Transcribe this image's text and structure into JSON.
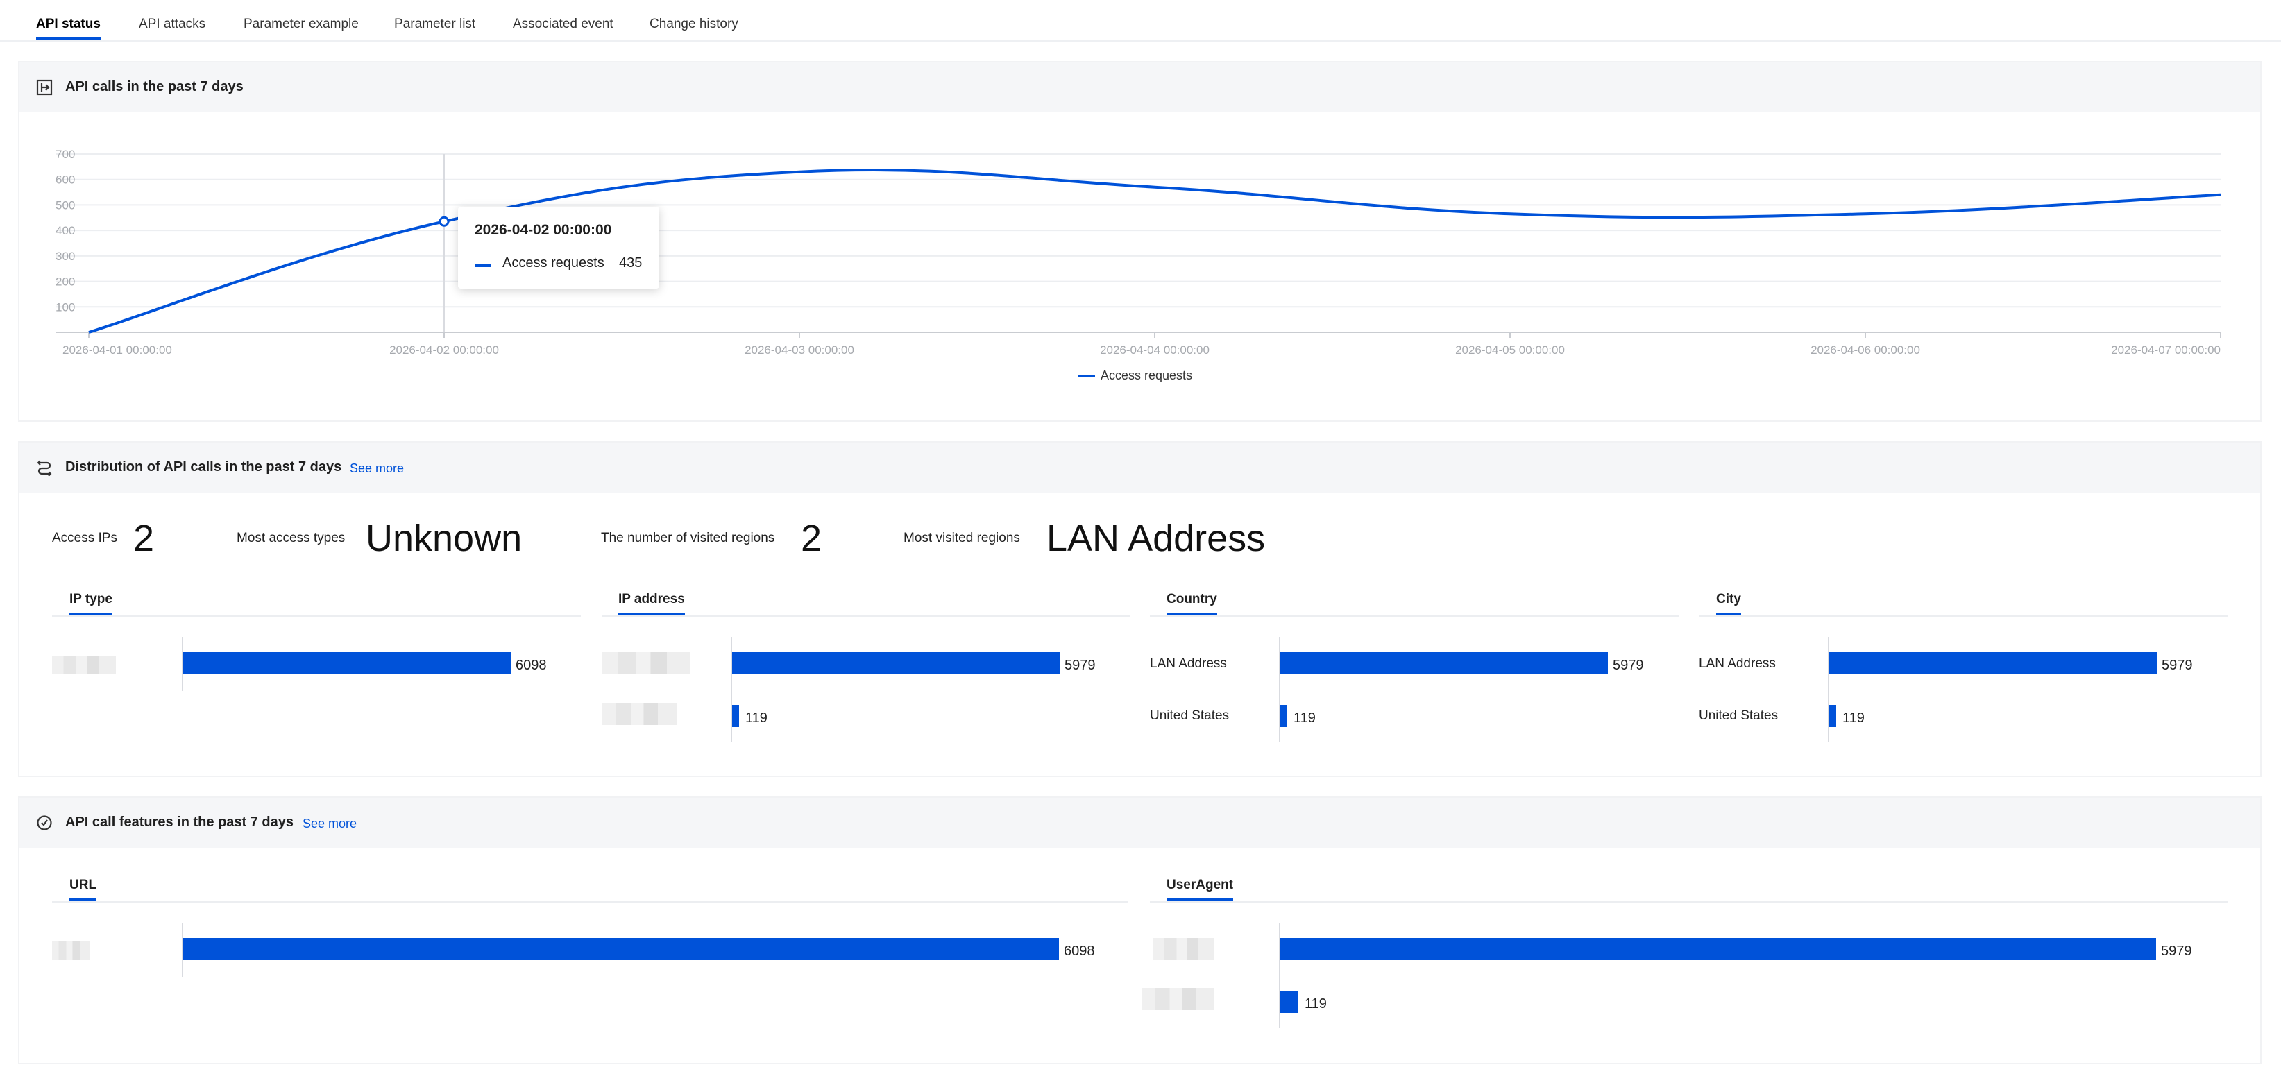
{
  "tabs": [
    {
      "label": "API status",
      "active": true
    },
    {
      "label": "API attacks",
      "active": false
    },
    {
      "label": "Parameter example",
      "active": false
    },
    {
      "label": "Parameter list",
      "active": false
    },
    {
      "label": "Associated event",
      "active": false
    },
    {
      "label": "Change history",
      "active": false
    }
  ],
  "calls_section": {
    "title": "API calls in the past 7 days",
    "icon": "api-calls-icon"
  },
  "chart_data": {
    "type": "line",
    "title": "",
    "xlabel": "",
    "ylabel": "",
    "x": [
      "2026-04-01 00:00:00",
      "2026-04-02 00:00:00",
      "2026-04-03 00:00:00",
      "2026-04-04 00:00:00",
      "2026-04-05 00:00:00",
      "2026-04-06 00:00:00",
      "2026-04-07 00:00:00"
    ],
    "yticks": [
      100,
      200,
      300,
      400,
      500,
      600,
      700
    ],
    "ylim": [
      0,
      700
    ],
    "series": [
      {
        "name": "Access requests",
        "values": [
          0,
          435,
          630,
          570,
          465,
          465,
          540
        ],
        "color": "#0052d9"
      }
    ],
    "legend": "bottom-center",
    "grid": true,
    "tooltip": {
      "time": "2026-04-02 00:00:00",
      "series": "Access requests",
      "value": "435"
    }
  },
  "distribution_section": {
    "title": "Distribution of API calls in the past 7 days",
    "see_more": "See more",
    "icon": "distribution-icon",
    "stats": [
      {
        "label": "Access IPs",
        "value": "2"
      },
      {
        "label": "Most access types",
        "value": "Unknown"
      },
      {
        "label": "The number of visited regions",
        "value": "2"
      },
      {
        "label": "Most visited regions",
        "value": "LAN Address"
      }
    ],
    "panels": [
      {
        "tab": "IP type",
        "rows": [
          {
            "label": "",
            "value": 6098
          }
        ]
      },
      {
        "tab": "IP address",
        "rows": [
          {
            "label": "",
            "value": 5979
          },
          {
            "label": "",
            "value": 119
          }
        ]
      },
      {
        "tab": "Country",
        "rows": [
          {
            "label": "LAN Address",
            "value": 5979
          },
          {
            "label": "United States",
            "value": 119
          }
        ]
      },
      {
        "tab": "City",
        "rows": [
          {
            "label": "LAN Address",
            "value": 5979
          },
          {
            "label": "United States",
            "value": 119
          }
        ]
      }
    ]
  },
  "features_section": {
    "title": "API call features in the past 7 days",
    "see_more": "See more",
    "icon": "features-icon",
    "panels": [
      {
        "tab": "URL",
        "rows": [
          {
            "label": "",
            "value": 6098
          }
        ]
      },
      {
        "tab": "UserAgent",
        "rows": [
          {
            "label": "",
            "value": 5979
          },
          {
            "label": "",
            "value": 119
          }
        ]
      }
    ]
  }
}
